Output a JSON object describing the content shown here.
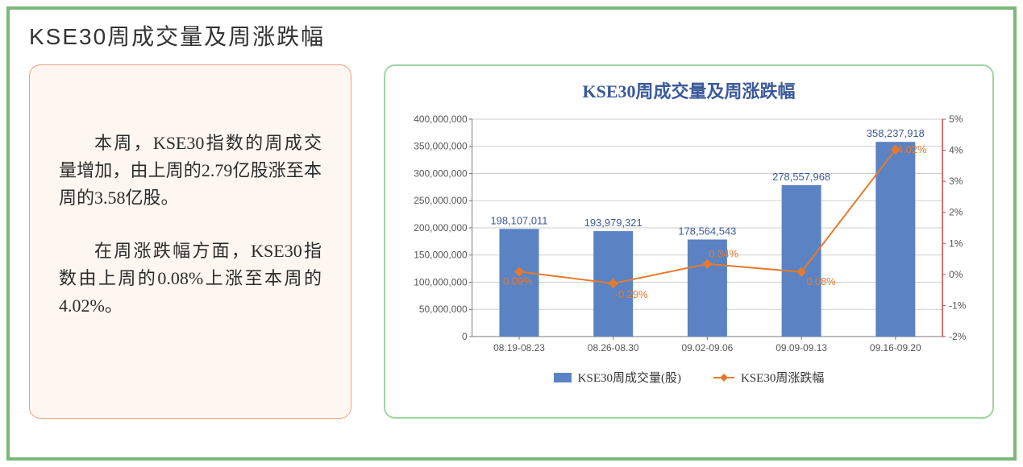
{
  "page": {
    "title": "KSE30周成交量及周涨跌幅"
  },
  "text_panel": {
    "para1": "本周，KSE30指数的周成交量增加，由上周的2.79亿股涨至本周的3.58亿股。",
    "para2": "在周涨跌幅方面，KSE30指数由上周的0.08%上涨至本周的4.02%。"
  },
  "chart": {
    "title": "KSE30周成交量及周涨跌幅",
    "type": "bar+line_dual_axis",
    "categories": [
      "08.19-08.23",
      "08.26-08.30",
      "09.02-09.06",
      "09.09-09.13",
      "09.16-09.20"
    ],
    "bar_series": {
      "name": "KSE30周成交量(股)",
      "values": [
        198107011,
        193979321,
        178564543,
        278557968,
        358237918
      ],
      "labels": [
        "198,107,011",
        "193,979,321",
        "178,564,543",
        "278,557,968",
        "358,237,918"
      ],
      "color": "#5b83c4",
      "bar_width_ratio": 0.42
    },
    "line_series": {
      "name": "KSE30周涨跌幅",
      "values": [
        0.0009,
        -0.0029,
        0.0034,
        0.0008,
        0.0402
      ],
      "labels": [
        "0.09%",
        "-0.29%",
        "0.34%",
        "0.08%",
        "4.02%"
      ],
      "color": "#e8792c",
      "marker": "diamond",
      "marker_size": 6,
      "line_width": 2
    },
    "y_left": {
      "min": 0,
      "max": 400000000,
      "step": 50000000,
      "ticks": [
        "0",
        "50,000,000",
        "100,000,000",
        "150,000,000",
        "200,000,000",
        "250,000,000",
        "300,000,000",
        "350,000,000",
        "400,000,000"
      ]
    },
    "y_right": {
      "min": -0.02,
      "max": 0.05,
      "step": 0.01,
      "ticks": [
        "-2%",
        "-1%",
        "0%",
        "1%",
        "2%",
        "3%",
        "4%",
        "5%"
      ]
    },
    "grid_color": "#cfcfcf",
    "axis_color": "#7a7a7a",
    "y_right_axis_color": "#c44a4a",
    "background": "#ffffff",
    "title_color": "#3b5a9a",
    "title_fontsize": 22,
    "axis_fontsize": 12,
    "label_fontsize": 13
  },
  "legend": {
    "bar_label": "KSE30周成交量(股)",
    "line_label": "KSE30周涨跌幅"
  },
  "colors": {
    "outer_border": "#7ab87a",
    "text_panel_border": "#f0a080",
    "text_panel_bg": "#fef6f0",
    "chart_panel_border": "#9fd69f"
  }
}
